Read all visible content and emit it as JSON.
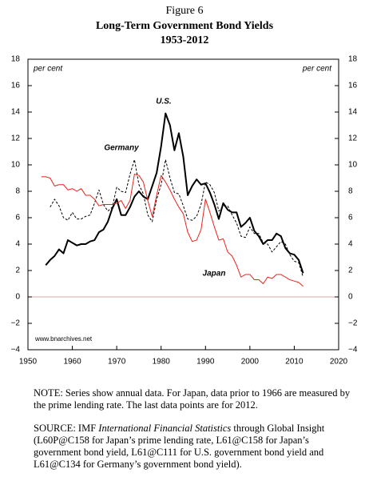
{
  "chart_data": {
    "type": "line",
    "figure_label": "Figure 6",
    "title": "Long-Term Government Bond Yields",
    "subtitle": "1953-2012",
    "y_unit_left": "per cent",
    "y_unit_right": "per cent",
    "source_mark": "www.bnarchives.net",
    "x": [
      1953,
      1954,
      1955,
      1956,
      1957,
      1958,
      1959,
      1960,
      1961,
      1962,
      1963,
      1964,
      1965,
      1966,
      1967,
      1968,
      1969,
      1970,
      1971,
      1972,
      1973,
      1974,
      1975,
      1976,
      1977,
      1978,
      1979,
      1980,
      1981,
      1982,
      1983,
      1984,
      1985,
      1986,
      1987,
      1988,
      1989,
      1990,
      1991,
      1992,
      1993,
      1994,
      1995,
      1996,
      1997,
      1998,
      1999,
      2000,
      2001,
      2002,
      2003,
      2004,
      2005,
      2006,
      2007,
      2008,
      2009,
      2010,
      2011,
      2012
    ],
    "series": [
      {
        "name": "U.S.",
        "color": "#000000",
        "linewidth": 2,
        "style": "solid",
        "values": [
          null,
          2.4,
          2.8,
          3.1,
          3.6,
          3.3,
          4.3,
          4.1,
          3.9,
          4.0,
          4.0,
          4.2,
          4.3,
          4.9,
          5.1,
          5.7,
          6.7,
          7.4,
          6.2,
          6.2,
          6.8,
          7.6,
          8.0,
          7.6,
          7.4,
          8.4,
          9.4,
          11.4,
          13.9,
          13.0,
          11.1,
          12.4,
          10.6,
          7.7,
          8.4,
          8.9,
          8.5,
          8.6,
          7.9,
          7.0,
          5.9,
          7.1,
          6.6,
          6.4,
          6.4,
          5.3,
          5.6,
          6.0,
          5.0,
          4.6,
          4.0,
          4.3,
          4.3,
          4.8,
          4.6,
          3.7,
          3.3,
          3.2,
          2.8,
          1.8
        ]
      },
      {
        "name": "Germany",
        "color": "#000000",
        "linewidth": 1,
        "style": "dashed",
        "values": [
          null,
          null,
          6.8,
          7.4,
          6.9,
          6.0,
          5.8,
          6.4,
          5.9,
          5.9,
          6.1,
          6.2,
          7.1,
          8.1,
          7.0,
          6.5,
          6.8,
          8.3,
          8.0,
          7.9,
          9.3,
          10.4,
          8.5,
          7.8,
          6.2,
          5.7,
          7.4,
          8.5,
          10.4,
          9.0,
          7.9,
          7.8,
          6.9,
          5.9,
          5.8,
          6.1,
          7.0,
          8.7,
          8.5,
          7.9,
          6.5,
          6.9,
          6.9,
          6.2,
          5.6,
          4.6,
          4.5,
          5.3,
          4.8,
          4.8,
          4.1,
          4.0,
          3.4,
          3.8,
          4.2,
          4.0,
          3.2,
          2.7,
          2.6,
          1.5
        ]
      },
      {
        "name": "Japan",
        "color": "#e8231b",
        "linewidth": 1,
        "style": "solid",
        "values": [
          9.1,
          9.1,
          9.0,
          8.4,
          8.5,
          8.5,
          8.1,
          8.2,
          8.0,
          8.2,
          7.7,
          7.7,
          7.4,
          6.9,
          7.0,
          7.0,
          7.0,
          7.1,
          7.3,
          6.7,
          7.3,
          9.3,
          9.2,
          8.7,
          7.3,
          6.1,
          7.7,
          9.2,
          8.7,
          8.1,
          7.4,
          6.8,
          6.3,
          4.9,
          4.2,
          4.3,
          5.1,
          7.4,
          6.4,
          5.3,
          4.3,
          4.4,
          3.4,
          3.1,
          2.4,
          1.5,
          1.7,
          1.7,
          1.3,
          1.3,
          1.0,
          1.5,
          1.4,
          1.7,
          1.7,
          1.5,
          1.3,
          1.2,
          1.1,
          0.8
        ]
      }
    ],
    "xlim": [
      1950,
      2020
    ],
    "xticks": [
      1950,
      1960,
      1970,
      1980,
      1990,
      2000,
      2010,
      2020
    ],
    "ylim": [
      -4,
      18
    ],
    "yticks": [
      {
        "value": -4,
        "label": "−4"
      },
      {
        "value": -2,
        "label": "−2"
      },
      0,
      2,
      4,
      6,
      8,
      10,
      12,
      14,
      16,
      18
    ],
    "zero_line": true,
    "grid": false
  },
  "notes": {
    "note": "NOTE: Series show annual data. For Japan, data prior to 1966 are measured by the prime lending rate. The last data points are for 2012.",
    "source_before": "SOURCE: IMF ",
    "source_italic": "International Financial Statistics",
    "source_after": " through Global Insight (L60P@C158 for Japan’s prime lending rate, L61@C158 for Japan’s government bond yield, L61@C111 for U.S. government bond yield and L61@C134 for Germany’s government bond yield)."
  }
}
